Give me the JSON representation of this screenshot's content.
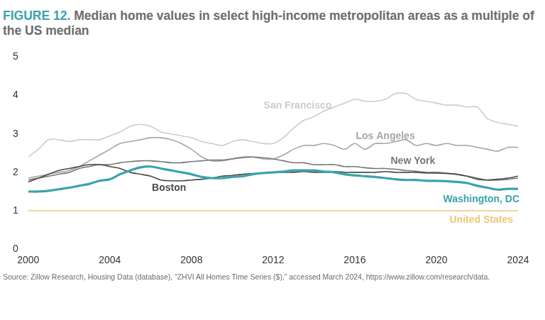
{
  "chart_data": {
    "type": "line",
    "title": "FIGURE 12. Median home values in select high-income metropolitan areas as a multiple of the US median",
    "source": "Source: Zillow Research, Housing Data (database), “ZHVI All Homes Time Series ($),” accessed March 2024, https://www.zillow.com/research/data.",
    "x": [
      2000,
      2000.5,
      2001,
      2001.5,
      2002,
      2002.5,
      2003,
      2003.5,
      2004,
      2004.5,
      2005,
      2005.5,
      2006,
      2006.5,
      2007,
      2007.5,
      2008,
      2008.5,
      2009,
      2009.5,
      2010,
      2010.5,
      2011,
      2011.5,
      2012,
      2012.5,
      2013,
      2013.5,
      2014,
      2014.5,
      2015,
      2015.5,
      2016,
      2016.5,
      2017,
      2017.5,
      2018,
      2018.5,
      2019,
      2019.5,
      2020,
      2020.5,
      2021,
      2021.5,
      2022,
      2022.5,
      2023,
      2023.5,
      2024
    ],
    "series": [
      {
        "name": "San Francisco",
        "color": "#cccccc",
        "values": [
          2.4,
          2.6,
          2.85,
          2.85,
          2.8,
          2.85,
          2.85,
          2.85,
          2.95,
          3.05,
          3.2,
          3.25,
          3.2,
          3.05,
          3.0,
          2.95,
          2.9,
          2.8,
          2.75,
          2.7,
          2.8,
          2.85,
          2.8,
          2.75,
          2.75,
          2.9,
          3.15,
          3.35,
          3.45,
          3.6,
          3.7,
          3.8,
          3.9,
          3.85,
          3.85,
          3.9,
          4.05,
          4.05,
          3.9,
          3.85,
          3.8,
          3.75,
          3.75,
          3.7,
          3.7,
          3.4,
          3.3,
          3.25,
          3.2
        ]
      },
      {
        "name": "Los Angeles",
        "color": "#a6a6a6",
        "values": [
          1.85,
          1.9,
          1.95,
          2.0,
          2.05,
          2.15,
          2.3,
          2.45,
          2.6,
          2.75,
          2.8,
          2.85,
          2.9,
          2.9,
          2.85,
          2.75,
          2.6,
          2.4,
          2.3,
          2.3,
          2.35,
          2.4,
          2.4,
          2.35,
          2.35,
          2.45,
          2.6,
          2.7,
          2.7,
          2.75,
          2.7,
          2.6,
          2.75,
          2.6,
          2.75,
          2.75,
          2.8,
          2.85,
          2.7,
          2.75,
          2.7,
          2.75,
          2.7,
          2.7,
          2.65,
          2.6,
          2.55,
          2.65,
          2.65
        ]
      },
      {
        "name": "New York",
        "color": "#777777",
        "values": [
          1.8,
          1.85,
          1.9,
          1.95,
          2.0,
          2.1,
          2.15,
          2.2,
          2.2,
          2.25,
          2.28,
          2.3,
          2.3,
          2.28,
          2.25,
          2.25,
          2.28,
          2.3,
          2.32,
          2.32,
          2.35,
          2.38,
          2.4,
          2.38,
          2.35,
          2.3,
          2.25,
          2.25,
          2.2,
          2.2,
          2.2,
          2.15,
          2.15,
          2.12,
          2.1,
          2.1,
          2.08,
          2.05,
          2.03,
          2.0,
          2.0,
          1.98,
          1.95,
          1.9,
          1.85,
          1.8,
          1.8,
          1.82,
          1.85
        ]
      },
      {
        "name": "Boston",
        "color": "#4a4a4a",
        "values": [
          1.75,
          1.85,
          1.95,
          2.05,
          2.1,
          2.15,
          2.2,
          2.2,
          2.15,
          2.1,
          2.0,
          1.95,
          1.9,
          1.8,
          1.78,
          1.78,
          1.8,
          1.82,
          1.85,
          1.9,
          1.92,
          1.95,
          1.97,
          1.98,
          2.0,
          2.0,
          2.0,
          2.02,
          2.0,
          2.0,
          2.02,
          2.0,
          2.0,
          2.0,
          2.0,
          2.02,
          2.0,
          2.0,
          2.0,
          1.98,
          1.98,
          1.97,
          1.95,
          1.9,
          1.82,
          1.8,
          1.82,
          1.85,
          1.9
        ]
      },
      {
        "name": "Washington, DC",
        "color": "#3aa3ab",
        "values": [
          1.5,
          1.5,
          1.52,
          1.56,
          1.6,
          1.65,
          1.7,
          1.78,
          1.82,
          1.95,
          2.05,
          2.13,
          2.15,
          2.1,
          2.05,
          2.0,
          1.95,
          1.88,
          1.85,
          1.85,
          1.88,
          1.9,
          1.95,
          1.98,
          2.0,
          2.02,
          2.05,
          2.05,
          2.05,
          2.02,
          2.0,
          1.95,
          1.92,
          1.9,
          1.88,
          1.85,
          1.82,
          1.8,
          1.8,
          1.78,
          1.78,
          1.77,
          1.75,
          1.72,
          1.65,
          1.6,
          1.55,
          1.57,
          1.57
        ]
      },
      {
        "name": "United States",
        "color": "#edc77a",
        "values": [
          1,
          1,
          1,
          1,
          1,
          1,
          1,
          1,
          1,
          1,
          1,
          1,
          1,
          1,
          1,
          1,
          1,
          1,
          1,
          1,
          1,
          1,
          1,
          1,
          1,
          1,
          1,
          1,
          1,
          1,
          1,
          1,
          1,
          1,
          1,
          1,
          1,
          1,
          1,
          1,
          1,
          1,
          1,
          1,
          1,
          1,
          1,
          1,
          1
        ]
      }
    ],
    "xlim": [
      2000,
      2024
    ],
    "xticks": [
      2000,
      2004,
      2008,
      2012,
      2016,
      2020,
      2024
    ],
    "ylim": [
      0,
      5
    ],
    "yticks": [
      0,
      1,
      2,
      3,
      4,
      5
    ],
    "grid": false,
    "legend": "none"
  }
}
